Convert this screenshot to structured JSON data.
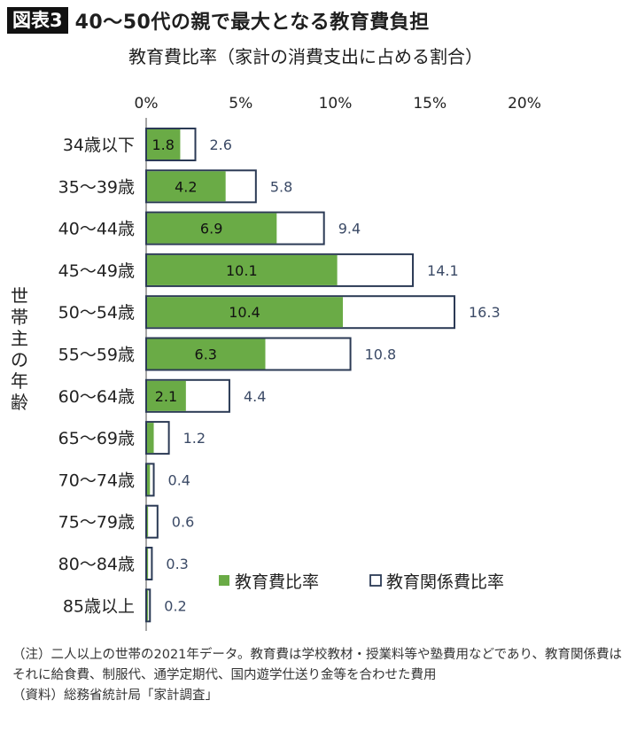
{
  "header": {
    "figure_label": "図表3",
    "title": "40〜50代の親で最大となる教育費負担"
  },
  "chart_data": {
    "type": "bar",
    "orientation": "horizontal",
    "title": "教育費比率（家計の消費支出に占める割合）",
    "ylabel": "世帯主の年齢",
    "xlim": [
      0,
      20
    ],
    "x_ticks": [
      "0%",
      "5%",
      "10%",
      "15%",
      "20%"
    ],
    "x_tick_values": [
      0,
      5,
      10,
      15,
      20
    ],
    "categories": [
      "34歳以下",
      "35〜39歳",
      "40〜44歳",
      "45〜49歳",
      "50〜54歳",
      "55〜59歳",
      "60〜64歳",
      "65〜69歳",
      "70〜74歳",
      "75〜79歳",
      "80〜84歳",
      "85歳以上"
    ],
    "series": [
      {
        "name": "教育費比率",
        "color": "#6aab46",
        "values": [
          1.8,
          4.2,
          6.9,
          10.1,
          10.4,
          6.3,
          2.1,
          0.4,
          0.2,
          0.1,
          0.1,
          0.1
        ],
        "labels": [
          "1.8",
          "4.2",
          "6.9",
          "10.1",
          "10.4",
          "6.3",
          "2.1",
          "",
          "",
          "",
          "",
          ""
        ]
      },
      {
        "name": "教育関係費比率",
        "color": "#ffffff",
        "values": [
          2.6,
          5.8,
          9.4,
          14.1,
          16.3,
          10.8,
          4.4,
          1.2,
          0.4,
          0.6,
          0.3,
          0.2
        ],
        "labels": [
          "2.6",
          "5.8",
          "9.4",
          "14.1",
          "16.3",
          "10.8",
          "4.4",
          "1.2",
          "0.4",
          "0.6",
          "0.3",
          "0.2"
        ]
      }
    ],
    "legend_position": "bottom-right",
    "bar_outline_color": "#2b3a55",
    "value_label_color": "#3b4a66"
  },
  "notes": [
    "（注）二人以上の世帯の2021年データ。教育費は学校教材・授業料等や塾費用などであり、教育関係費はそれに給食費、制服代、通学定期代、国内遊学仕送り金等を合わせた費用",
    "（資料）総務省統計局「家計調査」"
  ]
}
